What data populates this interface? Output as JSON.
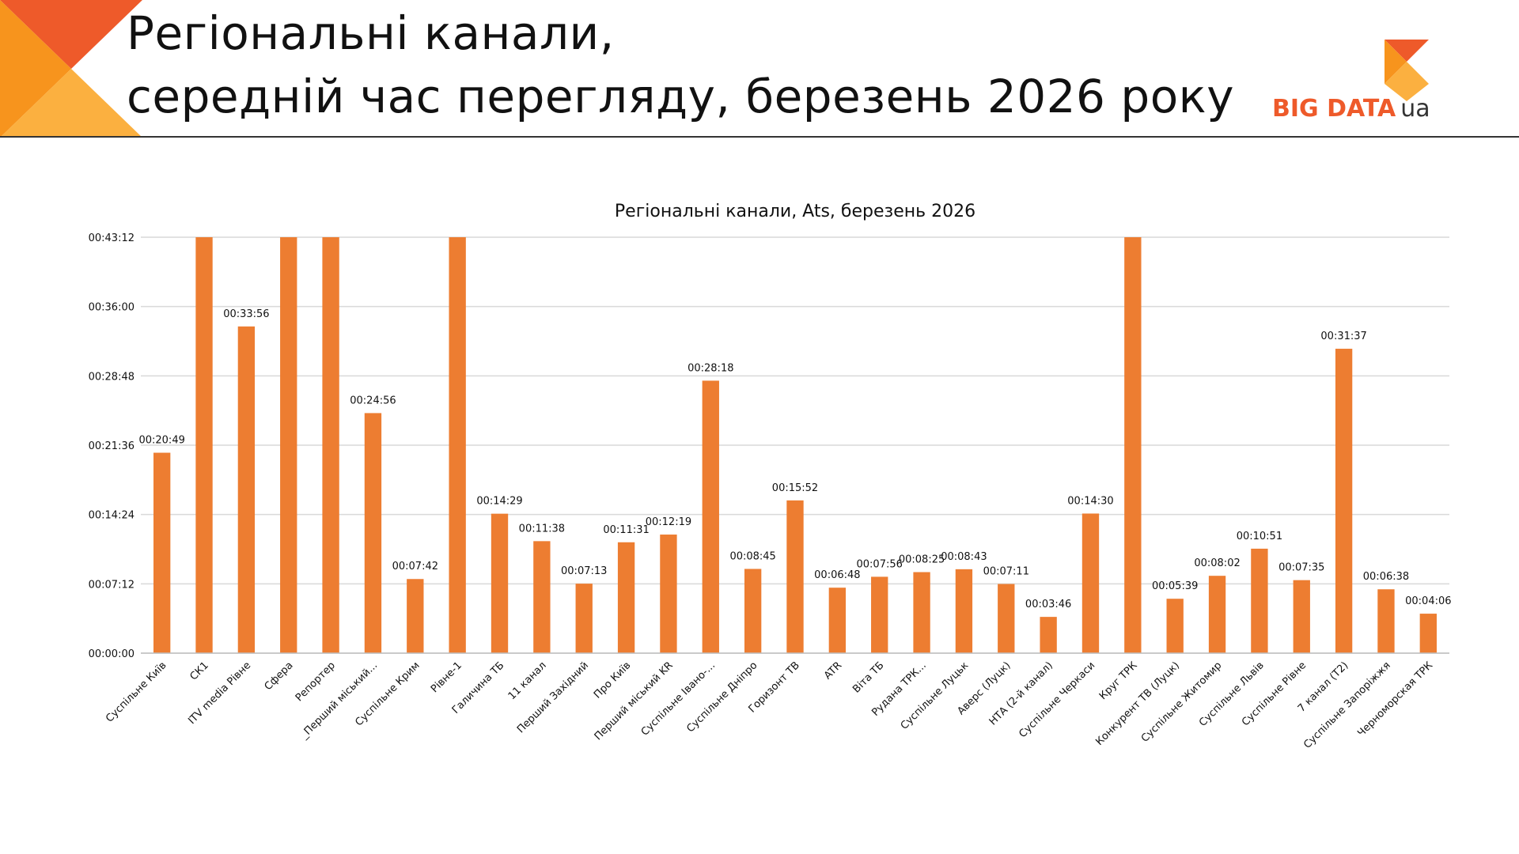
{
  "header": {
    "title_line1": "Регіональні канали,",
    "title_line2": "середній час перегляду, березень 2026 року"
  },
  "logo": {
    "big_data": "BIG DATA",
    "ua": "ua"
  },
  "colors": {
    "bar": "#ed7d31",
    "grid": "#d9d9d9",
    "accent_orange": "#f7941d",
    "accent_red": "#ee5a2a",
    "accent_yellow": "#fbb040"
  },
  "chart_data": {
    "type": "bar",
    "title": "Регіональні канали, Ats, березень 2026",
    "xlabel": "",
    "ylabel": "",
    "y_unit": "seconds",
    "ylim": [
      0,
      2592
    ],
    "y_ticks": [
      0,
      432,
      864,
      1296,
      1728,
      2160,
      2592
    ],
    "y_tick_labels": [
      "00:00:00",
      "00:07:12",
      "00:14:24",
      "00:21:36",
      "00:28:48",
      "00:36:00",
      "00:43:12"
    ],
    "grid": true,
    "categories": [
      "Суспільне Київ",
      "СК1",
      "ITV media Рівне",
      "Сфера",
      "Репортер",
      "_Перший міський...",
      "Суспільне Крим",
      "Рівне-1",
      "Галичина ТБ",
      "11 канал",
      "Перший Західний",
      "Про Київ",
      "Перший міський KR",
      "Суспільне Івано-...",
      "Суспільне Дніпро",
      "Горизонт ТВ",
      "ATR",
      "Віта ТБ",
      "Рудана ТРК...",
      "Суспільне Луцьк",
      "Аверс (Луцк)",
      "НТА (2-й канал)",
      "Суспільне Черкаси",
      "Круг ТРК",
      "Конкурент ТВ (Луцк)",
      "Суспільне Житомир",
      "Суспільне Львів",
      "Суспільне Рівне",
      "7 канал (Т2)",
      "Суспільне Запоріжжя",
      "Черноморская ТРК"
    ],
    "values": [
      1249,
      2592,
      2036,
      2592,
      2592,
      1496,
      462,
      2592,
      869,
      698,
      433,
      691,
      739,
      1698,
      525,
      952,
      408,
      476,
      505,
      523,
      431,
      226,
      870,
      2592,
      339,
      482,
      651,
      455,
      1897,
      398,
      246
    ],
    "data_labels": [
      "00:20:49",
      "",
      "00:33:56",
      "",
      "",
      "00:24:56",
      "00:07:42",
      "",
      "00:14:29",
      "00:11:38",
      "00:07:13",
      "00:11:31",
      "00:12:19",
      "00:28:18",
      "00:08:45",
      "00:15:52",
      "00:06:48",
      "00:07:56",
      "00:08:25",
      "00:08:43",
      "00:07:11",
      "00:03:46",
      "00:14:30",
      "",
      "00:05:39",
      "00:08:02",
      "00:10:51",
      "00:07:35",
      "00:31:37",
      "00:06:38",
      "00:04:06"
    ]
  }
}
